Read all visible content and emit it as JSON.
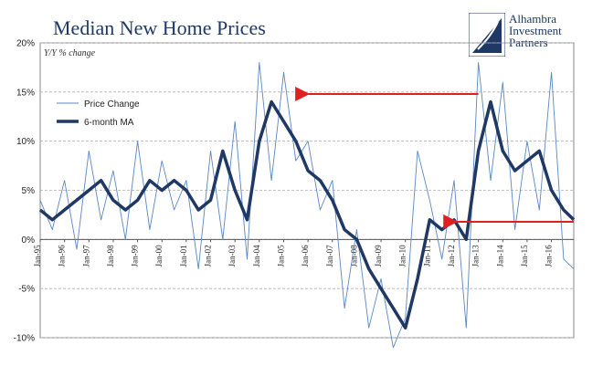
{
  "title": "Median New Home Prices",
  "subtitle": "Y/Y % change",
  "brand": {
    "lines": [
      "Alhambra",
      "Investment",
      "Partners"
    ],
    "icon": "alhambra-logo-icon"
  },
  "colors": {
    "raw_line": "#5b86c2",
    "ma_line": "#1f3864",
    "arrow": "#e02020",
    "grid": "#b0b0b0",
    "title": "#1f3864"
  },
  "chart_data": {
    "type": "line",
    "title": "Median New Home Prices",
    "subtitle": "Y/Y % change",
    "xlabel": "",
    "ylabel": "",
    "ylim": [
      -10,
      20
    ],
    "yticks": [
      "20%",
      "15%",
      "10%",
      "5%",
      "0%",
      "-5%",
      "-10%"
    ],
    "ytick_values": [
      20,
      15,
      10,
      5,
      0,
      -5,
      -10
    ],
    "xticks": [
      "Jan-95",
      "Jan-96",
      "Jan-97",
      "Jan-98",
      "Jan-99",
      "Jan-00",
      "Jan-01",
      "Jan-02",
      "Jan-03",
      "Jan-04",
      "Jan-05",
      "Jan-06",
      "Jan-07",
      "Jan-08",
      "Jan-09",
      "Jan-10",
      "Jan-11",
      "Jan-12",
      "Jan-13",
      "Jan-14",
      "Jan-15",
      "Jan-16"
    ],
    "xtick_years": [
      1995,
      1996,
      1997,
      1998,
      1999,
      2000,
      2001,
      2002,
      2003,
      2004,
      2005,
      2006,
      2007,
      2008,
      2009,
      2010,
      2011,
      2012,
      2013,
      2014,
      2015,
      2016
    ],
    "xlim": [
      "1995-01",
      "2016-12"
    ],
    "grid": true,
    "legend_position": "top-left",
    "series": [
      {
        "name": "Price Change",
        "style": "thin",
        "x": [
          "1995-01",
          "1995-07",
          "1996-01",
          "1996-07",
          "1997-01",
          "1997-07",
          "1998-01",
          "1998-07",
          "1999-01",
          "1999-07",
          "2000-01",
          "2000-07",
          "2001-01",
          "2001-07",
          "2002-01",
          "2002-07",
          "2003-01",
          "2003-07",
          "2004-01",
          "2004-07",
          "2005-01",
          "2005-07",
          "2006-01",
          "2006-07",
          "2007-01",
          "2007-07",
          "2008-01",
          "2008-07",
          "2009-01",
          "2009-07",
          "2010-01",
          "2010-07",
          "2011-01",
          "2011-07",
          "2012-01",
          "2012-07",
          "2013-01",
          "2013-07",
          "2014-01",
          "2014-07",
          "2015-01",
          "2015-07",
          "2016-01",
          "2016-07",
          "2016-12"
        ],
        "values": [
          4,
          1,
          6,
          -1,
          9,
          2,
          7,
          0,
          10,
          1,
          8,
          3,
          6,
          -3,
          9,
          0,
          12,
          -2,
          18,
          6,
          17,
          8,
          10,
          3,
          6,
          -7,
          1,
          -9,
          -4,
          -11,
          -8,
          9,
          4,
          -2,
          6,
          -9,
          18,
          6,
          16,
          1,
          10,
          3,
          17,
          -2,
          -3
        ]
      },
      {
        "name": "6-month MA",
        "style": "thick",
        "x": [
          "1995-01",
          "1995-07",
          "1996-01",
          "1996-07",
          "1997-01",
          "1997-07",
          "1998-01",
          "1998-07",
          "1999-01",
          "1999-07",
          "2000-01",
          "2000-07",
          "2001-01",
          "2001-07",
          "2002-01",
          "2002-07",
          "2003-01",
          "2003-07",
          "2004-01",
          "2004-07",
          "2005-01",
          "2005-07",
          "2006-01",
          "2006-07",
          "2007-01",
          "2007-07",
          "2008-01",
          "2008-07",
          "2009-01",
          "2009-07",
          "2010-01",
          "2010-07",
          "2011-01",
          "2011-07",
          "2012-01",
          "2012-07",
          "2013-01",
          "2013-07",
          "2014-01",
          "2014-07",
          "2015-01",
          "2015-07",
          "2016-01",
          "2016-07",
          "2016-12"
        ],
        "values": [
          3,
          2,
          3,
          4,
          5,
          6,
          4,
          3,
          4,
          6,
          5,
          6,
          5,
          3,
          4,
          9,
          5,
          2,
          10,
          14,
          12,
          10,
          7,
          6,
          4,
          1,
          0,
          -3,
          -5,
          -7,
          -9,
          -4,
          2,
          1,
          2,
          0,
          9,
          14,
          9,
          7,
          8,
          9,
          5,
          3,
          2
        ]
      }
    ],
    "annotations": [
      {
        "type": "arrow",
        "from": [
          "2013-01",
          14.8
        ],
        "to": [
          "2006-01",
          14.8
        ]
      },
      {
        "type": "arrow",
        "from": [
          "2016-12",
          1.8
        ],
        "to": [
          "2012-02",
          1.8
        ]
      }
    ]
  }
}
